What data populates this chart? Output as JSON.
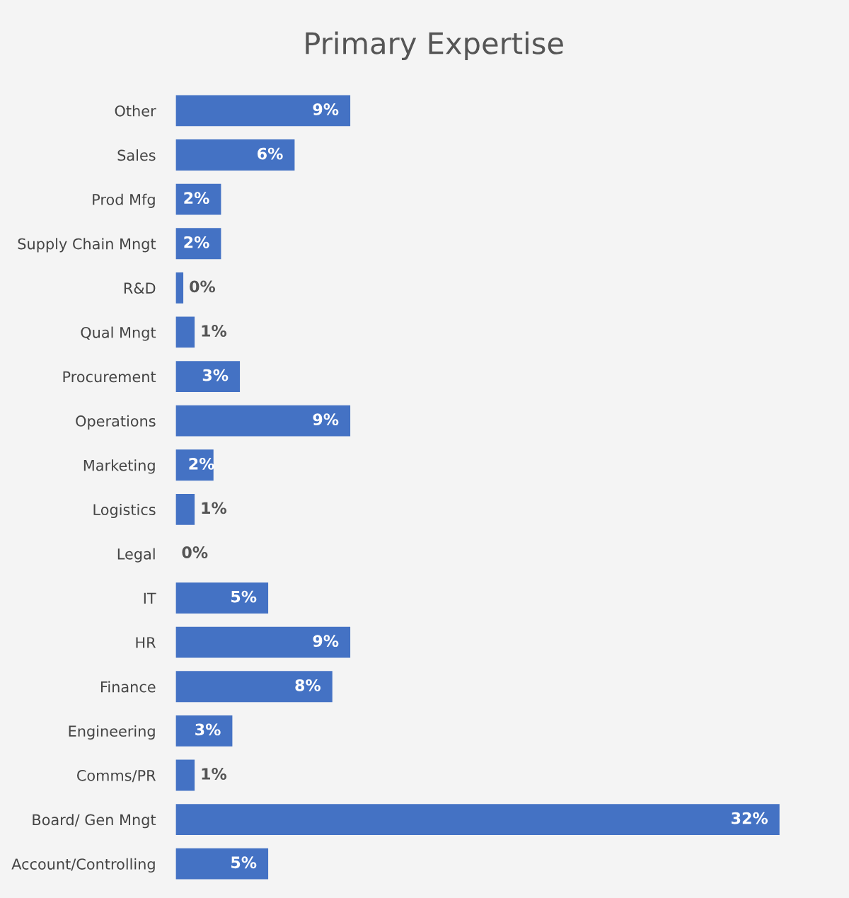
{
  "chart_data": {
    "type": "bar",
    "orientation": "horizontal",
    "title": "Primary Expertise",
    "categories": [
      "Other",
      "Sales",
      "Prod Mfg",
      "Supply Chain Mngt",
      "R&D",
      "Qual Mngt",
      "Procurement",
      "Operations",
      "Marketing",
      "Logistics",
      "Legal",
      "IT",
      "HR",
      "Finance",
      "Engineering",
      "Comms/PR",
      "Board/ Gen Mngt",
      "Account/Controlling"
    ],
    "values": [
      9.25,
      6.3,
      2.4,
      2.4,
      0.4,
      1.0,
      3.4,
      9.25,
      2.0,
      1.0,
      0,
      4.9,
      9.25,
      8.3,
      3.0,
      1.0,
      32.0,
      4.9
    ],
    "value_labels": [
      "9%",
      "6%",
      "2%",
      "2%",
      "0%",
      "1%",
      "3%",
      "9%",
      "2%",
      "1%",
      "0%",
      "5%",
      "9%",
      "8%",
      "3%",
      "1%",
      "32%",
      "5%"
    ],
    "color": "#4472c4",
    "grid": false,
    "legend": false
  }
}
